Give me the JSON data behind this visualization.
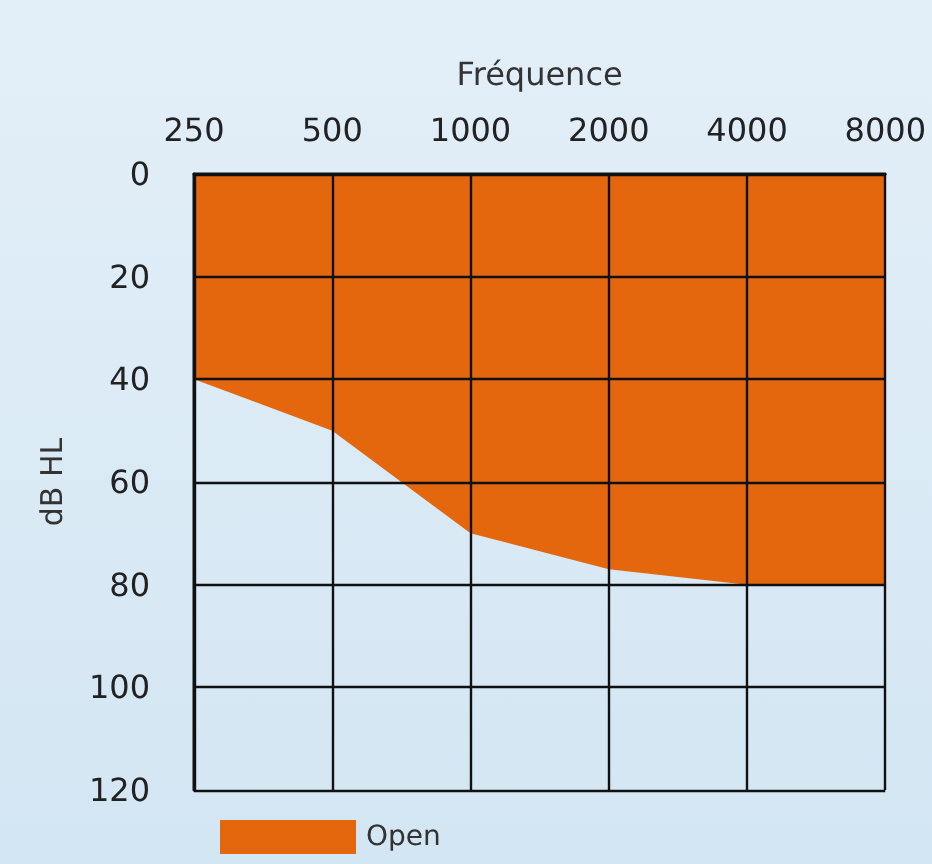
{
  "chart_data": {
    "type": "area",
    "xlabel": "Fréquence",
    "ylabel": "dB HL",
    "categories": [
      "250",
      "500",
      "1000",
      "2000",
      "4000",
      "8000"
    ],
    "series": [
      {
        "name": "Open",
        "color": "#e4670e",
        "values": [
          40,
          50,
          70,
          77,
          80,
          80
        ]
      }
    ],
    "ylim": [
      120,
      0
    ],
    "yticks": [
      0,
      20,
      40,
      60,
      80,
      100,
      120
    ],
    "grid": true,
    "legend": "bottom left"
  }
}
